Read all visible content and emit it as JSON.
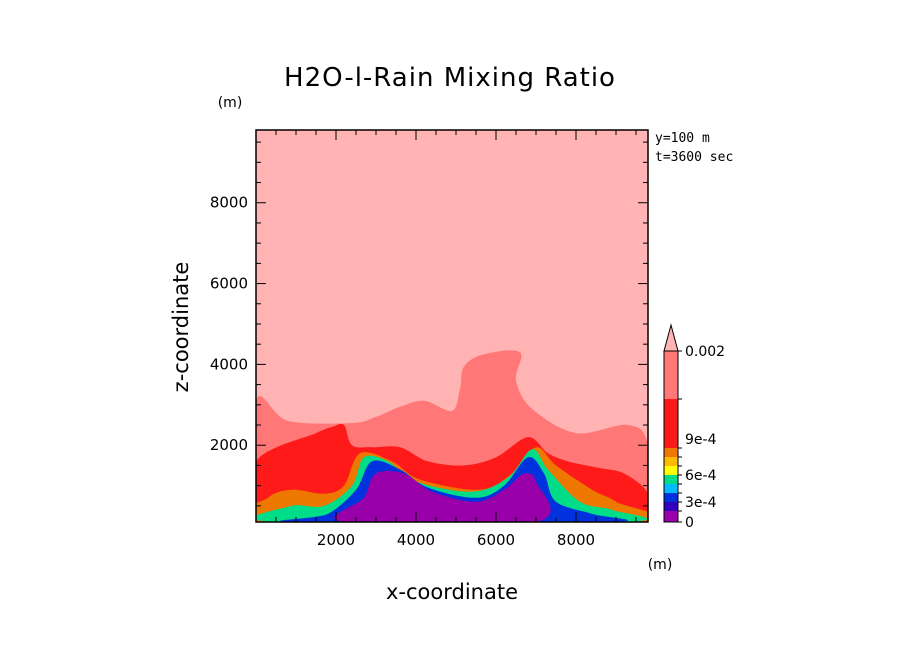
{
  "chart_data": {
    "type": "heatmap",
    "title": "H2O-l-Rain Mixing Ratio",
    "xlabel": "x-coordinate",
    "ylabel": "z-coordinate",
    "x_unit": "(m)",
    "y_unit": "(m)",
    "xlim": [
      0,
      9800
    ],
    "ylim": [
      100,
      9800
    ],
    "x_ticks": [
      2000,
      4000,
      6000,
      8000
    ],
    "y_ticks": [
      2000,
      4000,
      6000,
      8000
    ],
    "info_lines": [
      "y=100 m",
      "t=3600 sec"
    ],
    "colorbar": {
      "levels": [
        "0",
        "3e-4",
        "6e-4",
        "9e-4",
        "0.002"
      ],
      "colors": [
        "#9900aa",
        "#3300bb",
        "#0033dd",
        "#00bbff",
        "#00dd88",
        "#ffff00",
        "#ffbb00",
        "#ee7700",
        "#ff1a1a",
        "#ff7777",
        "#ffb3b3"
      ],
      "extend": "max"
    },
    "contour_regions": [
      {
        "level": "background",
        "color": "#ffb3b3",
        "approx_outline": [
          [
            0,
            100
          ],
          [
            9800,
            100
          ],
          [
            9800,
            9800
          ],
          [
            0,
            9800
          ]
        ]
      },
      {
        "level": "band-9",
        "color": "#ff7777",
        "approx_outline": [
          [
            0,
            100
          ],
          [
            0,
            3100
          ],
          [
            800,
            2600
          ],
          [
            2400,
            2550
          ],
          [
            3000,
            2700
          ],
          [
            3600,
            2950
          ],
          [
            4200,
            3100
          ],
          [
            4900,
            2850
          ],
          [
            5100,
            3400
          ],
          [
            5200,
            3950
          ],
          [
            5700,
            4250
          ],
          [
            6600,
            4300
          ],
          [
            6500,
            3600
          ],
          [
            6900,
            2900
          ],
          [
            8000,
            2300
          ],
          [
            9300,
            2500
          ],
          [
            9800,
            2000
          ],
          [
            9800,
            100
          ]
        ]
      },
      {
        "level": "band-8",
        "color": "#ff1a1a",
        "approx_outline": [
          [
            0,
            100
          ],
          [
            0,
            1600
          ],
          [
            1500,
            2300
          ],
          [
            1900,
            2450
          ],
          [
            2200,
            2500
          ],
          [
            2400,
            2000
          ],
          [
            2900,
            1950
          ],
          [
            3600,
            1950
          ],
          [
            4300,
            1600
          ],
          [
            5200,
            1500
          ],
          [
            6000,
            1700
          ],
          [
            6800,
            2200
          ],
          [
            7300,
            1800
          ],
          [
            7800,
            1600
          ],
          [
            8500,
            1450
          ],
          [
            9200,
            1300
          ],
          [
            9800,
            800
          ],
          [
            9800,
            100
          ]
        ]
      },
      {
        "level": "band-7",
        "color": "#ee7700",
        "approx_outline": [
          [
            100,
            100
          ],
          [
            300,
            700
          ],
          [
            900,
            900
          ],
          [
            1700,
            800
          ],
          [
            2200,
            1000
          ],
          [
            2600,
            1800
          ],
          [
            3400,
            1600
          ],
          [
            4100,
            1150
          ],
          [
            5600,
            900
          ],
          [
            6400,
            1300
          ],
          [
            7000,
            1950
          ],
          [
            7500,
            1500
          ],
          [
            8400,
            900
          ],
          [
            9000,
            600
          ],
          [
            9500,
            100
          ]
        ]
      },
      {
        "level": "band-5",
        "color": "#00dd88",
        "approx_outline": [
          [
            500,
            100
          ],
          [
            900,
            500
          ],
          [
            1700,
            500
          ],
          [
            2400,
            1000
          ],
          [
            2700,
            1700
          ],
          [
            3300,
            1600
          ],
          [
            4000,
            1100
          ],
          [
            5400,
            850
          ],
          [
            6300,
            1200
          ],
          [
            6900,
            1900
          ],
          [
            7300,
            1400
          ],
          [
            8100,
            600
          ],
          [
            8900,
            400
          ],
          [
            9200,
            100
          ]
        ]
      },
      {
        "level": "band-3",
        "color": "#0033dd",
        "approx_outline": [
          [
            1000,
            100
          ],
          [
            1800,
            300
          ],
          [
            2500,
            900
          ],
          [
            2900,
            1600
          ],
          [
            3600,
            1400
          ],
          [
            4300,
            950
          ],
          [
            5500,
            700
          ],
          [
            6200,
            1000
          ],
          [
            6800,
            1700
          ],
          [
            7200,
            1300
          ],
          [
            7500,
            600
          ],
          [
            8400,
            300
          ],
          [
            8800,
            100
          ]
        ]
      },
      {
        "level": "band-1",
        "color": "#9900aa",
        "approx_outline": [
          [
            2200,
            100
          ],
          [
            2700,
            700
          ],
          [
            3000,
            1300
          ],
          [
            3700,
            1300
          ],
          [
            4400,
            850
          ],
          [
            5500,
            600
          ],
          [
            6200,
            900
          ],
          [
            6700,
            1300
          ],
          [
            7000,
            1100
          ],
          [
            7000,
            100
          ]
        ]
      }
    ]
  }
}
